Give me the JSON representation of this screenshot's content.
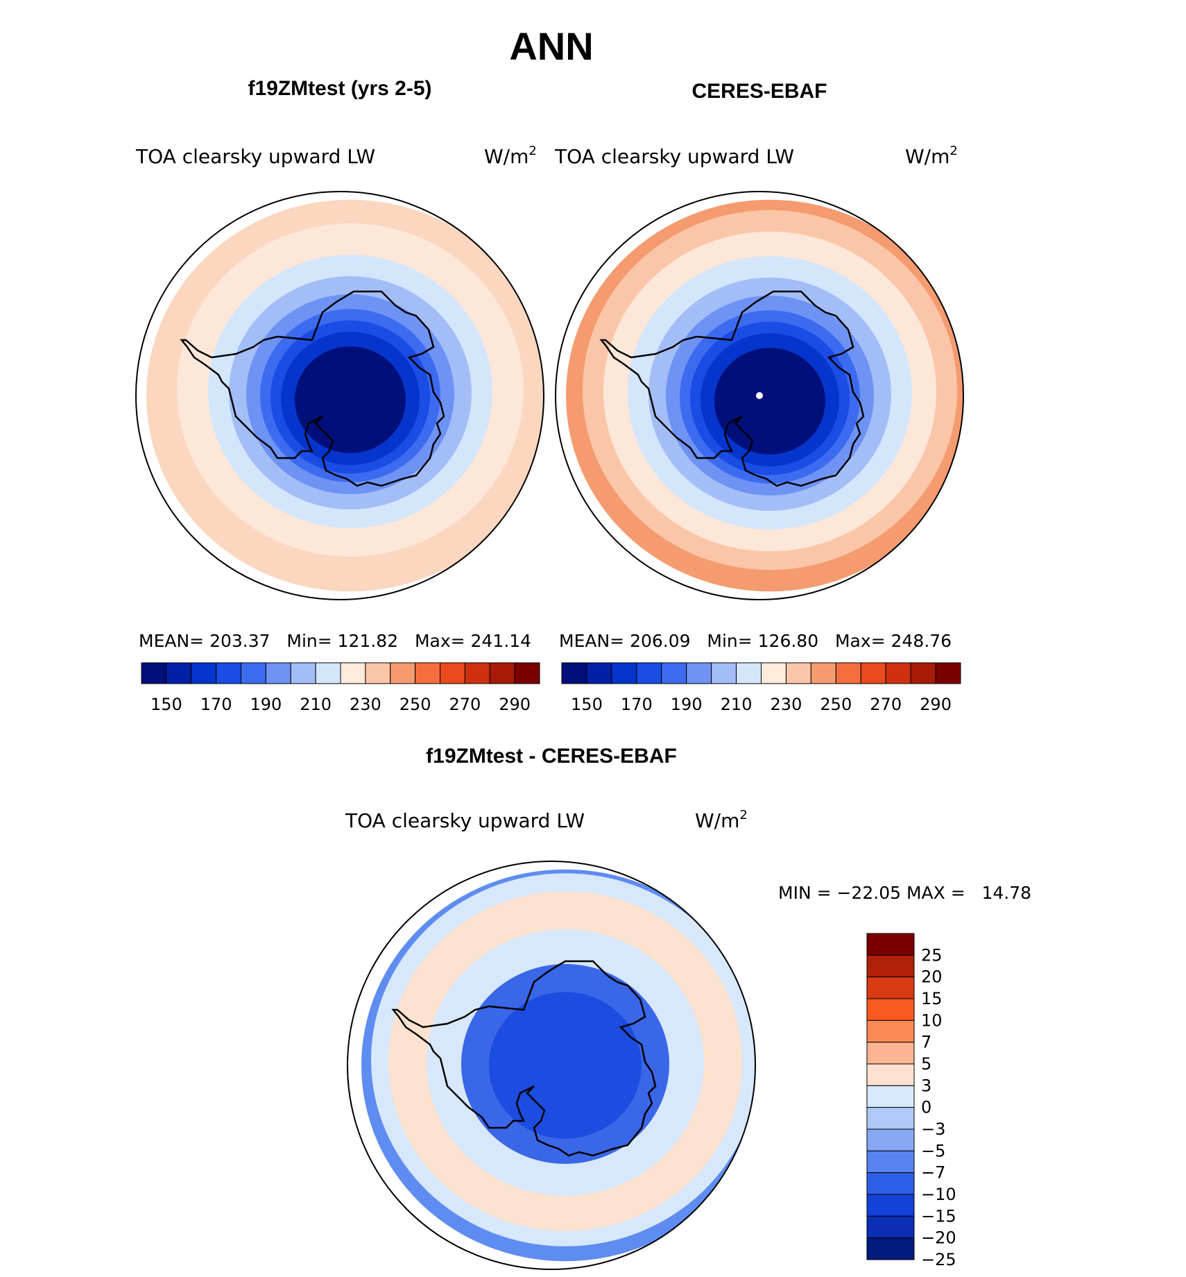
{
  "figure": {
    "main_title": "ANN"
  },
  "panels": [
    {
      "title": "f19ZMtest (yrs 2-5)",
      "field": "TOA clearsky upward LW",
      "units": "W/m",
      "units_sup": "2",
      "stats": "MEAN= 203.37   Min= 121.82   Max= 241.14"
    },
    {
      "title": "CERES-EBAF",
      "field": "TOA clearsky upward LW",
      "units": "W/m",
      "units_sup": "2",
      "stats": "MEAN= 206.09   Min= 126.80   Max= 248.76"
    },
    {
      "title": "f19ZMtest - CERES-EBAF",
      "field": "TOA clearsky upward LW",
      "units": "W/m",
      "units_sup": "2",
      "stats": "MIN = −22.05 MAX =   14.78"
    }
  ],
  "chart_data": [
    {
      "type": "heatmap",
      "projection": "south polar stereographic",
      "title": "f19ZMtest (yrs 2-5)",
      "variable": "TOA clearsky upward LW",
      "units": "W/m2",
      "mean": 203.37,
      "min": 121.82,
      "max": 241.14,
      "colorbar": {
        "orientation": "horizontal",
        "levels": [
          150,
          160,
          170,
          180,
          190,
          200,
          210,
          220,
          230,
          240,
          250,
          260,
          270,
          280,
          290
        ],
        "tick_labels": [
          "150",
          "170",
          "190",
          "210",
          "230",
          "250",
          "270",
          "290"
        ],
        "colors": [
          "#000f7a",
          "#0020a6",
          "#0535cc",
          "#1a4ce6",
          "#3d6bf0",
          "#6e93f5",
          "#a3bdf7",
          "#d4e6fc",
          "#ffebdc",
          "#fbc6a8",
          "#f59b70",
          "#f56e3f",
          "#ea4a1e",
          "#d0300f",
          "#a71a08",
          "#7a0000"
        ]
      },
      "contour_bands": [
        {
          "value": 235,
          "color": "#fbd7c0"
        },
        {
          "value": 225,
          "color": "#fde7d9"
        },
        {
          "value": 215,
          "color": "#d4e6fc"
        },
        {
          "value": 205,
          "color": "#a3bdf7"
        },
        {
          "value": 195,
          "color": "#6e93f5"
        },
        {
          "value": 185,
          "color": "#3d6bf0"
        },
        {
          "value": 175,
          "color": "#1a4ce6"
        },
        {
          "value": 165,
          "color": "#0535cc"
        },
        {
          "value": 150,
          "color": "#000f7a"
        }
      ]
    },
    {
      "type": "heatmap",
      "projection": "south polar stereographic",
      "title": "CERES-EBAF",
      "variable": "TOA clearsky upward LW",
      "units": "W/m2",
      "mean": 206.09,
      "min": 126.8,
      "max": 248.76,
      "colorbar": {
        "orientation": "horizontal",
        "levels": [
          150,
          160,
          170,
          180,
          190,
          200,
          210,
          220,
          230,
          240,
          250,
          260,
          270,
          280,
          290
        ],
        "tick_labels": [
          "150",
          "170",
          "190",
          "210",
          "230",
          "250",
          "270",
          "290"
        ],
        "colors": [
          "#000f7a",
          "#0020a6",
          "#0535cc",
          "#1a4ce6",
          "#3d6bf0",
          "#6e93f5",
          "#a3bdf7",
          "#d4e6fc",
          "#ffebdc",
          "#fbc6a8",
          "#f59b70",
          "#f56e3f",
          "#ea4a1e",
          "#d0300f",
          "#a71a08",
          "#7a0000"
        ]
      },
      "contour_bands": [
        {
          "value": 245,
          "color": "#f59b70"
        },
        {
          "value": 235,
          "color": "#fbc6a8"
        },
        {
          "value": 225,
          "color": "#fde7d9"
        },
        {
          "value": 215,
          "color": "#d4e6fc"
        },
        {
          "value": 205,
          "color": "#a3bdf7"
        },
        {
          "value": 195,
          "color": "#6e93f5"
        },
        {
          "value": 185,
          "color": "#3d6bf0"
        },
        {
          "value": 175,
          "color": "#1a4ce6"
        },
        {
          "value": 165,
          "color": "#0535cc"
        },
        {
          "value": 150,
          "color": "#000f7a"
        }
      ]
    },
    {
      "type": "heatmap",
      "projection": "south polar stereographic",
      "title": "f19ZMtest - CERES-EBAF",
      "variable": "TOA clearsky upward LW",
      "units": "W/m2",
      "min": -22.05,
      "max": 14.78,
      "colorbar": {
        "orientation": "vertical",
        "levels": [
          25,
          20,
          15,
          10,
          7,
          5,
          3,
          0,
          -3,
          -5,
          -7,
          -10,
          -15,
          -20,
          -25
        ],
        "tick_labels": [
          "25",
          "20",
          "15",
          "10",
          "7",
          "5",
          "3",
          "0",
          "−3",
          "−5",
          "−7",
          "−10",
          "−15",
          "−20",
          "−25"
        ],
        "colors": [
          "#7a0000",
          "#b0200a",
          "#d93a12",
          "#fa5a1e",
          "#f98a55",
          "#fbb592",
          "#fde2cf",
          "#d7e8fc",
          "#b0c9f8",
          "#87a9f5",
          "#5883ee",
          "#2f5ee6",
          "#1342d8",
          "#0a2eb4",
          "#001a7d"
        ]
      },
      "contour_bands": [
        {
          "value": -5,
          "color": "#5f8cf0"
        },
        {
          "value": -1,
          "color": "#d7e8fc"
        },
        {
          "value": 1,
          "color": "#fde2cf"
        },
        {
          "value": -1,
          "color": "#d7e8fc"
        },
        {
          "value": -8,
          "color": "#3a66e8"
        },
        {
          "value": -12,
          "color": "#1c4de0"
        }
      ]
    }
  ]
}
